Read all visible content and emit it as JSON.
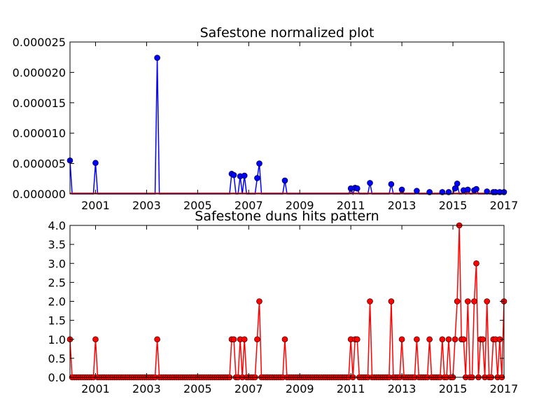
{
  "chart_data": [
    {
      "type": "line",
      "title": "Safestone normalized plot",
      "xlabel": "",
      "ylabel": "",
      "xlim": [
        2000.0,
        2017.0
      ],
      "ylim": [
        0,
        2.5e-05
      ],
      "grid": false,
      "x_ticks": [
        "2001",
        "2003",
        "2005",
        "2007",
        "2009",
        "2011",
        "2013",
        "2015",
        "2017"
      ],
      "y_ticks": [
        "0.000000",
        "0.000005",
        "0.000010",
        "0.000015",
        "0.000020",
        "0.000025"
      ],
      "colors": {
        "series": "#0000ff",
        "marker": "#0000ff",
        "baseline": "#ff0000"
      },
      "series": [
        {
          "x": [
            2000.0,
            2001.0,
            2003.45,
            2006.3,
            2006.45,
            2006.7,
            2006.85,
            2007.35,
            2007.45,
            2008.45,
            2011.0,
            2011.15,
            2011.25,
            2011.75,
            2012.6,
            2013.0,
            2013.6,
            2014.1,
            2014.6,
            2014.85,
            2015.1,
            2015.2,
            2015.45,
            2015.55,
            2015.85,
            2015.95,
            2016.3,
            2016.6,
            2016.7,
            2016.85,
            2017.0
          ],
          "values": [
            5.5e-06,
            5.1e-06,
            2.24e-05,
            3.3e-06,
            3.1e-06,
            2.9e-06,
            3e-06,
            2.6e-06,
            5e-06,
            2.2e-06,
            9e-07,
            1e-06,
            9e-07,
            1.8e-06,
            1.6e-06,
            7e-07,
            5e-07,
            3e-07,
            3e-07,
            3e-07,
            9e-07,
            1.7e-06,
            6e-07,
            7e-07,
            6e-07,
            8e-07,
            4e-07,
            3e-07,
            3e-07,
            3e-07,
            3e-07
          ]
        }
      ]
    },
    {
      "type": "line",
      "title": "Safestone duns hits pattern",
      "xlabel": "",
      "ylabel": "",
      "xlim": [
        2000.0,
        2017.0
      ],
      "ylim": [
        0,
        4.0
      ],
      "grid": false,
      "x_ticks": [
        "2001",
        "2003",
        "2005",
        "2007",
        "2009",
        "2011",
        "2013",
        "2015",
        "2017"
      ],
      "y_ticks": [
        "0.0",
        "0.5",
        "1.0",
        "1.5",
        "2.0",
        "2.5",
        "3.0",
        "3.5",
        "4.0"
      ],
      "colors": {
        "series": "#ff0000",
        "marker": "#ff0000"
      },
      "series": [
        {
          "x": [
            2000.0,
            2001.0,
            2003.45,
            2006.3,
            2006.45,
            2006.7,
            2006.85,
            2007.35,
            2007.45,
            2008.45,
            2011.0,
            2011.15,
            2011.25,
            2011.75,
            2012.6,
            2013.0,
            2013.6,
            2014.1,
            2014.6,
            2014.85,
            2015.1,
            2015.2,
            2015.45,
            2015.55,
            2015.85,
            2015.95,
            2016.3,
            2016.6,
            2016.7,
            2016.85,
            2017.0
          ],
          "values": [
            1,
            1,
            1,
            1,
            1,
            1,
            1,
            1,
            2,
            1,
            1,
            1,
            1,
            2,
            2,
            1,
            1,
            1,
            1,
            1,
            1,
            2,
            1,
            2,
            2,
            3,
            2,
            1,
            1,
            1,
            2
          ]
        }
      ],
      "extra_points": {
        "x": [
          2015.25,
          2015.35,
          2016.1,
          2016.2
        ],
        "values": [
          4,
          1,
          1,
          1
        ]
      }
    }
  ]
}
